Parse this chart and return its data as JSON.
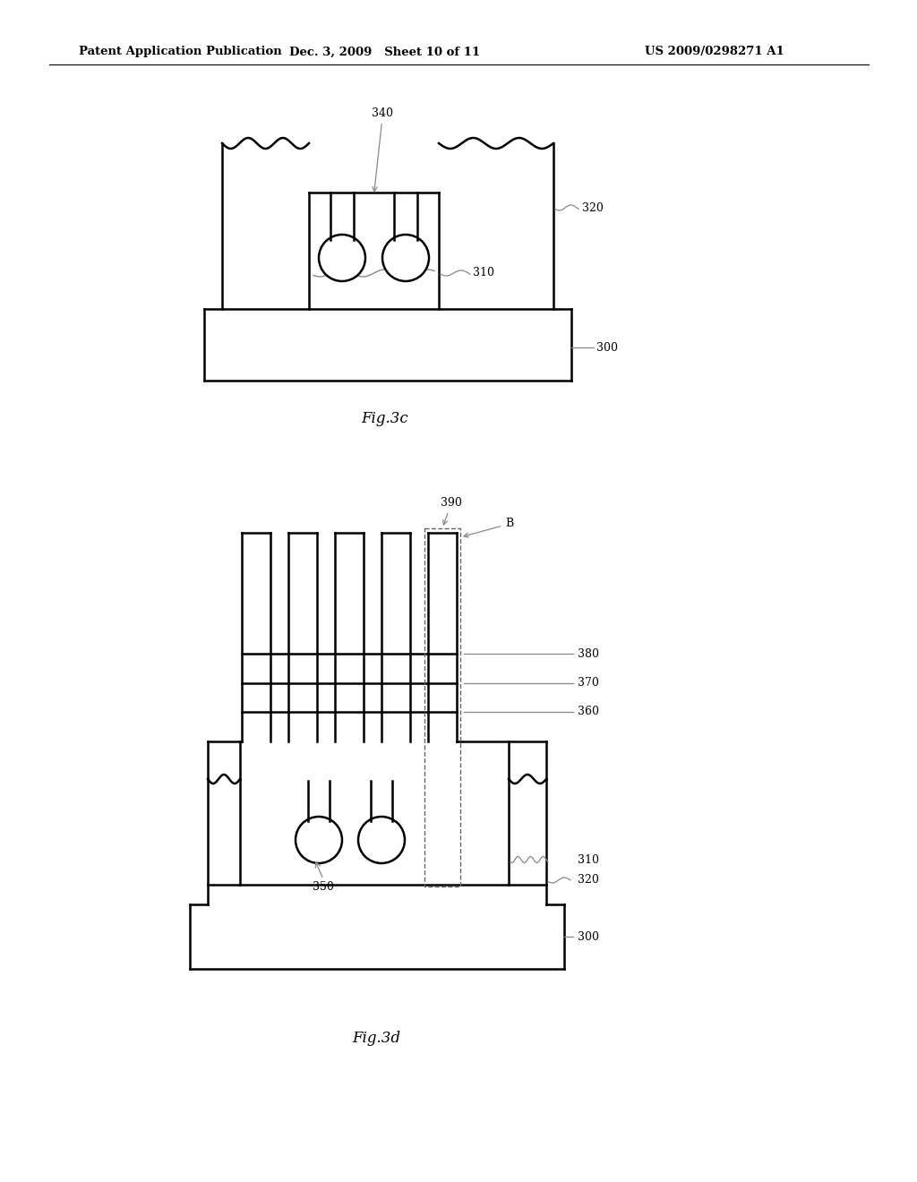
{
  "header_left": "Patent Application Publication",
  "header_mid": "Dec. 3, 2009   Sheet 10 of 11",
  "header_right": "US 2009/0298271 A1",
  "fig3c_label": "Fig.3c",
  "fig3d_label": "Fig.3d",
  "bg_color": "#ffffff",
  "line_color": "#000000",
  "gray_color": "#888888"
}
